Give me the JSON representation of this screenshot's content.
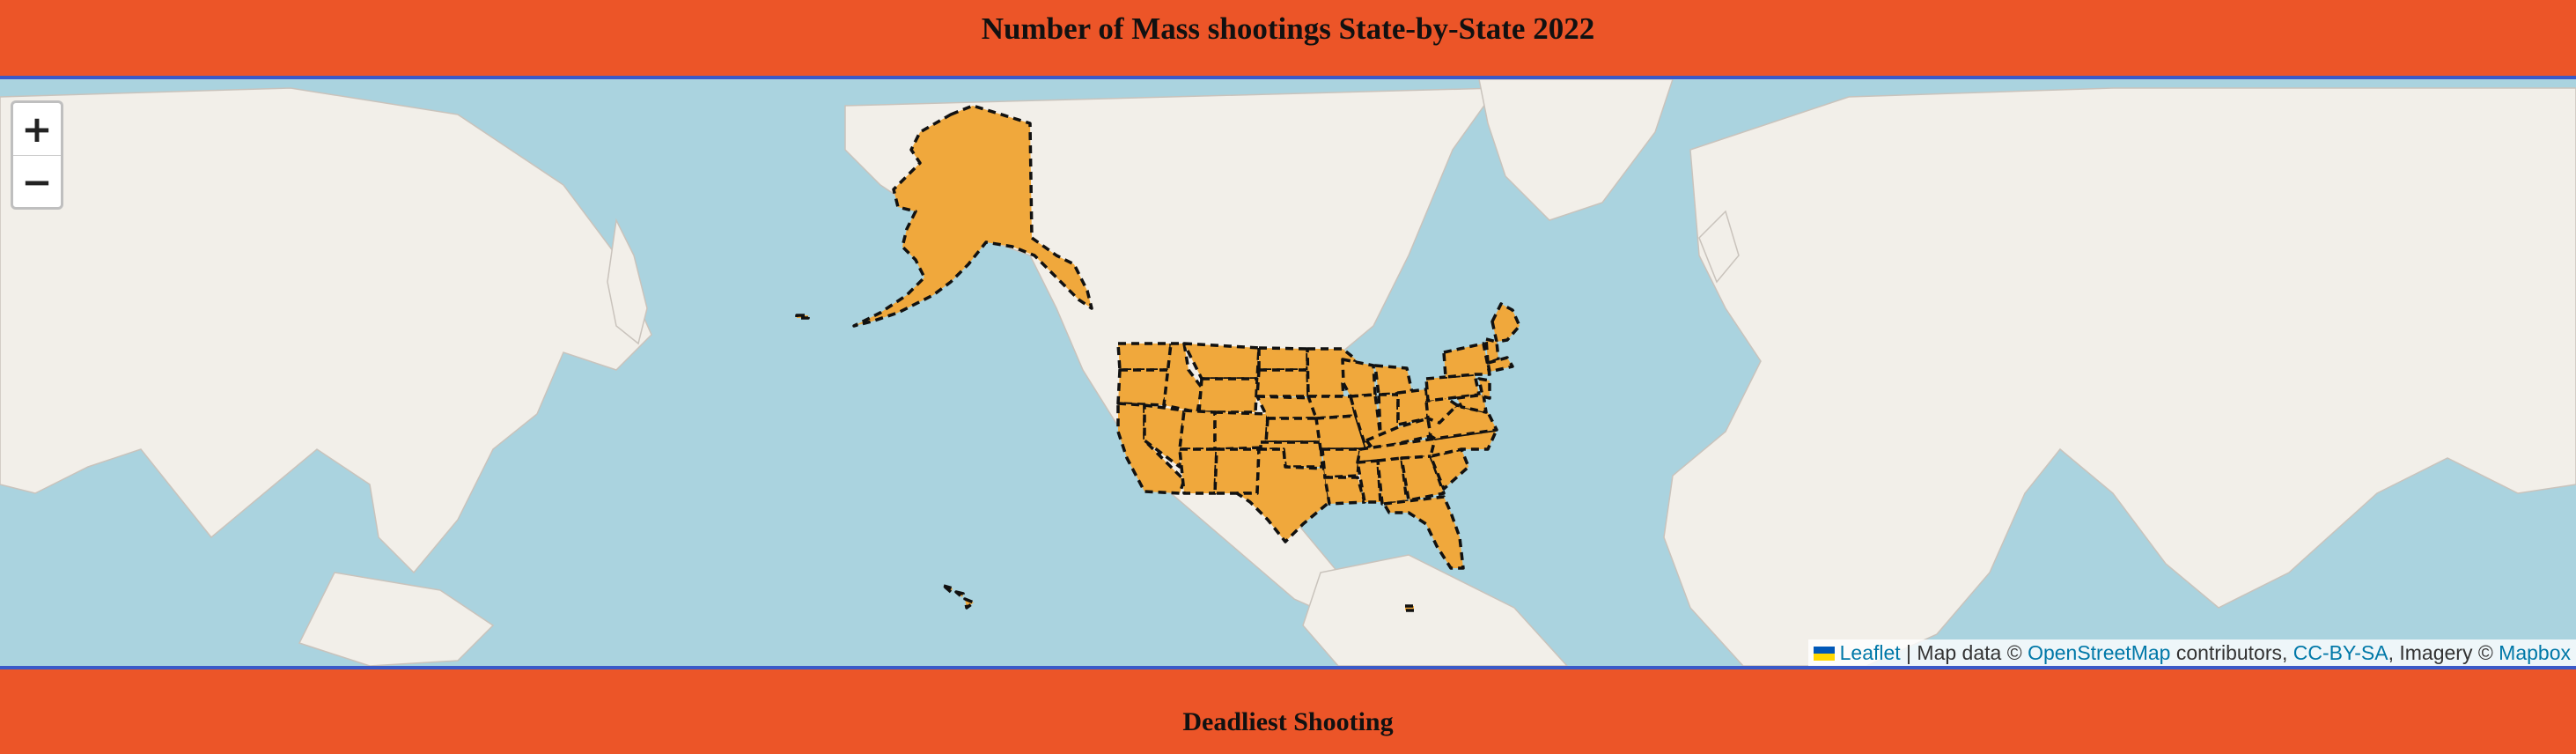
{
  "page": {
    "title": "Number of Mass shootings State-by-State 2022",
    "subtitle": "Deadliest Shooting"
  },
  "map": {
    "zoom_in_label": "+",
    "zoom_out_label": "−",
    "attribution": {
      "leaflet": "Leaflet",
      "sep1": " | Map data © ",
      "osm": "OpenStreetMap",
      "contributors": " contributors, ",
      "license": "CC-BY-SA",
      "imagery": ", Imagery © ",
      "mapbox": "Mapbox"
    },
    "colors": {
      "header": "#ec5528",
      "water": "#aad3df",
      "land": "#f2efe9",
      "state_fill": "#f0a83c",
      "state_border": "#111111"
    },
    "layers": [
      "base-tiles",
      "us-states-choropleth"
    ]
  }
}
